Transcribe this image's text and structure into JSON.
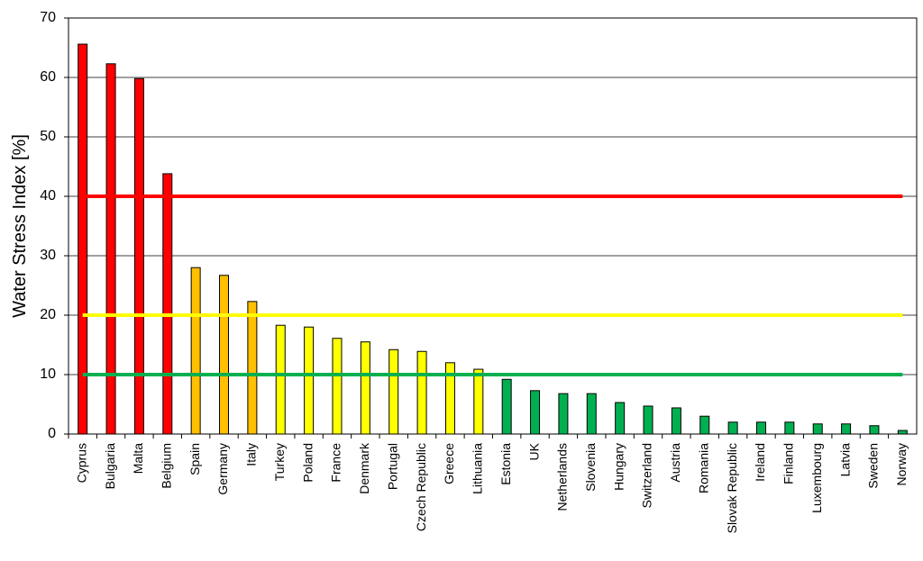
{
  "chart_data": {
    "type": "bar",
    "y_label": "Water Stress Index [%]",
    "categories": [
      "Cyprus",
      "Bulgaria",
      "Malta",
      "Belgium",
      "Spain",
      "Germany",
      "Italy",
      "Turkey",
      "Poland",
      "France",
      "Denmark",
      "Portugal",
      "Czech Republic",
      "Greece",
      "Lithuania",
      "Estonia",
      "UK",
      "Netherlands",
      "Slovenia",
      "Hungary",
      "Switzerland",
      "Austria",
      "Romania",
      "Slovak Republic",
      "Ireland",
      "Finland",
      "Luxembourg",
      "Latvia",
      "Sweden",
      "Norway"
    ],
    "values": [
      65.6,
      62.3,
      59.8,
      43.8,
      28.0,
      26.7,
      22.3,
      18.3,
      18.0,
      16.1,
      15.5,
      14.2,
      13.9,
      12.0,
      10.9,
      9.2,
      7.3,
      6.8,
      6.8,
      5.3,
      4.7,
      4.4,
      3.0,
      2.0,
      2.0,
      2.0,
      1.7,
      1.7,
      1.4,
      0.6
    ],
    "colors": [
      "#ff0000",
      "#ff0000",
      "#ff0000",
      "#ff0000",
      "#ffc000",
      "#ffc000",
      "#ffc000",
      "#ffff00",
      "#ffff00",
      "#ffff00",
      "#ffff00",
      "#ffff00",
      "#ffff00",
      "#ffff00",
      "#ffff00",
      "#00b050",
      "#00b050",
      "#00b050",
      "#00b050",
      "#00b050",
      "#00b050",
      "#00b050",
      "#00b050",
      "#00b050",
      "#00b050",
      "#00b050",
      "#00b050",
      "#00b050",
      "#00b050",
      "#00b050"
    ],
    "reference_lines": [
      {
        "value": 40,
        "color": "#ff0000"
      },
      {
        "value": 20,
        "color": "#ffff00"
      },
      {
        "value": 10,
        "color": "#00b050"
      }
    ],
    "ylim": [
      0,
      70
    ],
    "yticks": [
      0,
      10,
      20,
      30,
      40,
      50,
      60,
      70
    ],
    "grid": true
  }
}
